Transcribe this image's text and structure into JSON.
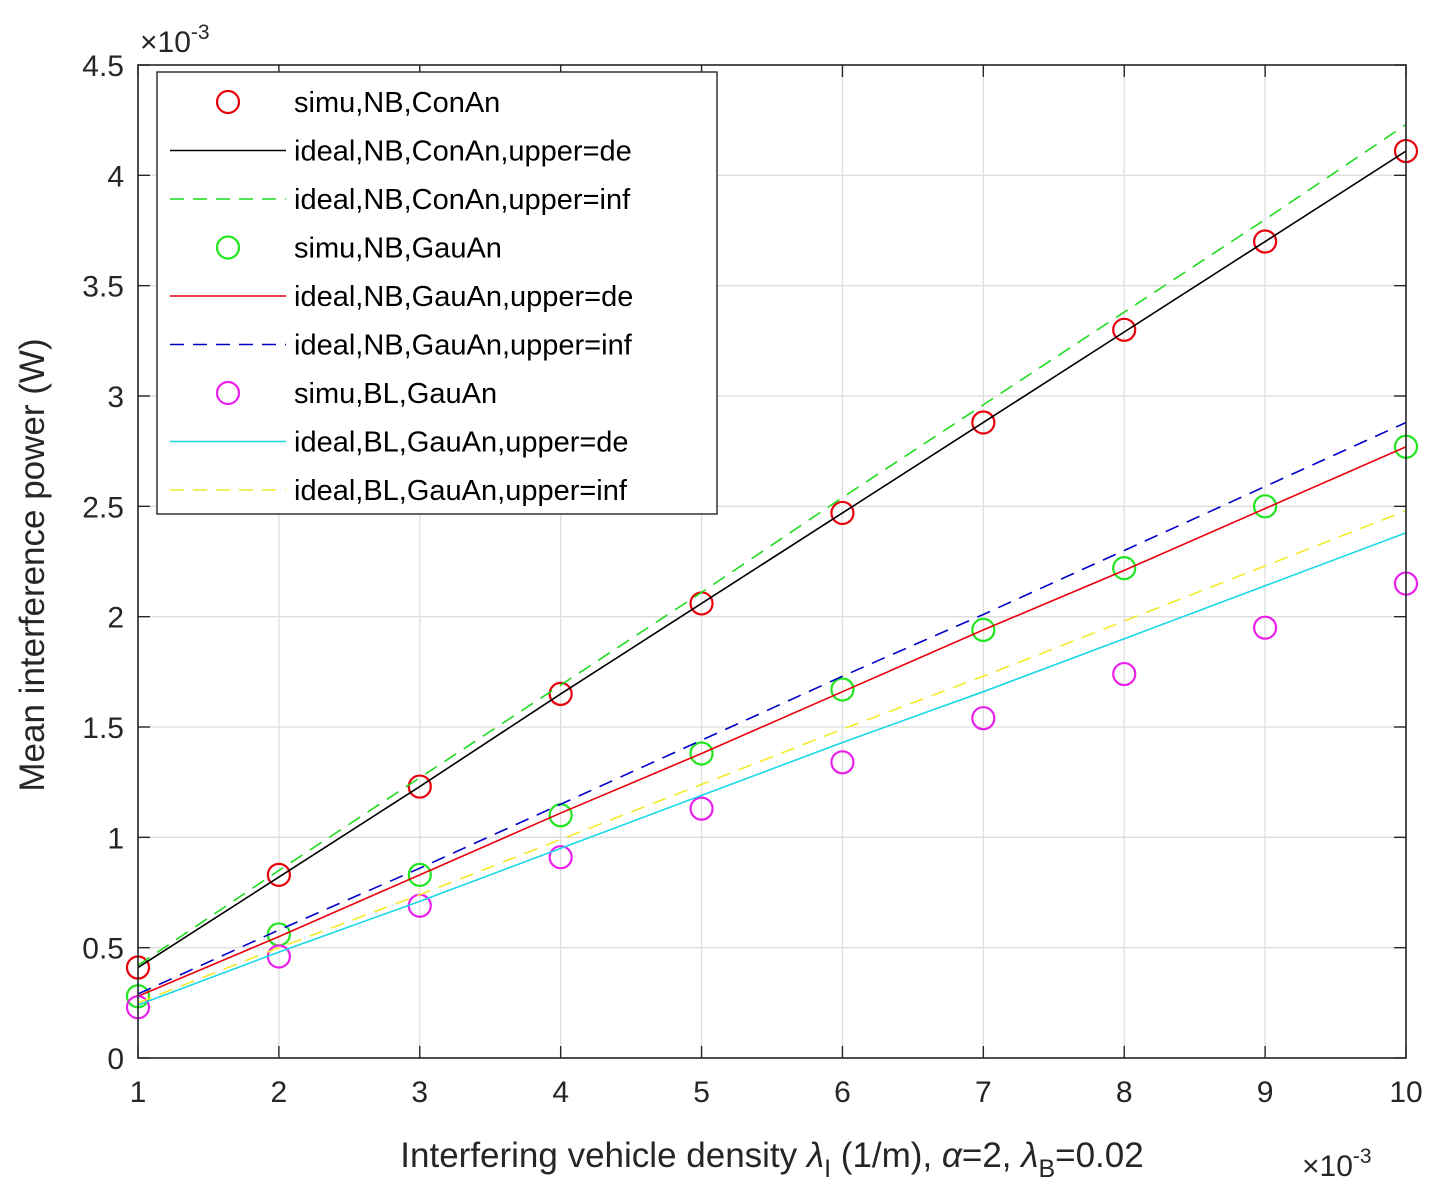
{
  "chart_data": {
    "type": "line",
    "xlabel": "Interfering  vehicle  density λ_I (1/m), α=2, λ_B=0.02",
    "xlabel_parts": {
      "prefix": "Interfering  vehicle  density ",
      "lambda": "λ",
      "sub_I": "I",
      "mid": " (1/m), ",
      "alpha": "α",
      "alpha_val": "=2, ",
      "lambda2": "λ",
      "sub_B": "B",
      "suffix": "=0.02"
    },
    "ylabel": "Mean  interference  power (W)",
    "x_exponent": "×10",
    "x_exponent_power": "-3",
    "y_exponent": "×10",
    "y_exponent_power": "-3",
    "xlim": [
      1,
      10
    ],
    "ylim": [
      0,
      4.5
    ],
    "xticks": [
      1,
      2,
      3,
      4,
      5,
      6,
      7,
      8,
      9,
      10
    ],
    "xtick_labels": [
      "1",
      "2",
      "3",
      "4",
      "5",
      "6",
      "7",
      "8",
      "9",
      "10"
    ],
    "yticks": [
      0,
      0.5,
      1,
      1.5,
      2,
      2.5,
      3,
      3.5,
      4,
      4.5
    ],
    "ytick_labels": [
      "0",
      "0.5",
      "1",
      "1.5",
      "2",
      "2.5",
      "3",
      "3.5",
      "4",
      "4.5"
    ],
    "grid": true,
    "legend_position": "top-left",
    "x": [
      1,
      2,
      3,
      4,
      5,
      6,
      7,
      8,
      9,
      10
    ],
    "series": [
      {
        "name": "simu,NB,ConAn",
        "style": "marker",
        "color": "#e8000b",
        "values": [
          0.41,
          0.83,
          1.23,
          1.65,
          2.06,
          2.47,
          2.88,
          3.3,
          3.7,
          4.11
        ]
      },
      {
        "name": "ideal,NB,ConAn,upper=de",
        "style": "solid",
        "color": "#000000",
        "values": [
          0.41,
          0.82,
          1.23,
          1.65,
          2.06,
          2.47,
          2.88,
          3.29,
          3.7,
          4.11
        ]
      },
      {
        "name": "ideal,NB,ConAn,upper=inf",
        "style": "dashed",
        "color": "#1fdc1f",
        "values": [
          0.42,
          0.85,
          1.27,
          1.69,
          2.11,
          2.54,
          2.96,
          3.38,
          3.8,
          4.23
        ]
      },
      {
        "name": "simu,NB,GauAn",
        "style": "marker",
        "color": "#1fe61f",
        "values": [
          0.28,
          0.56,
          0.83,
          1.1,
          1.38,
          1.67,
          1.94,
          2.22,
          2.5,
          2.77
        ]
      },
      {
        "name": "ideal,NB,GauAn,upper=de",
        "style": "solid",
        "color": "#e8000b",
        "values": [
          0.28,
          0.55,
          0.83,
          1.11,
          1.38,
          1.66,
          1.94,
          2.21,
          2.49,
          2.77
        ]
      },
      {
        "name": "ideal,NB,GauAn,upper=inf",
        "style": "dashed",
        "color": "#0000c8",
        "values": [
          0.29,
          0.58,
          0.86,
          1.15,
          1.44,
          1.73,
          2.01,
          2.3,
          2.59,
          2.88
        ]
      },
      {
        "name": "simu,BL,GauAn",
        "style": "marker",
        "color": "#ea1fea",
        "values": [
          0.23,
          0.46,
          0.69,
          0.91,
          1.13,
          1.34,
          1.54,
          1.74,
          1.95,
          2.15
        ]
      },
      {
        "name": "ideal,BL,GauAn,upper=de",
        "style": "solid",
        "color": "#17d7e6",
        "values": [
          0.24,
          0.48,
          0.71,
          0.95,
          1.19,
          1.43,
          1.66,
          1.9,
          2.14,
          2.38
        ]
      },
      {
        "name": "ideal,BL,GauAn,upper=inf",
        "style": "dashed",
        "color": "#f2ea2a",
        "values": [
          0.25,
          0.5,
          0.74,
          0.99,
          1.24,
          1.49,
          1.73,
          1.98,
          2.23,
          2.48
        ]
      }
    ]
  }
}
